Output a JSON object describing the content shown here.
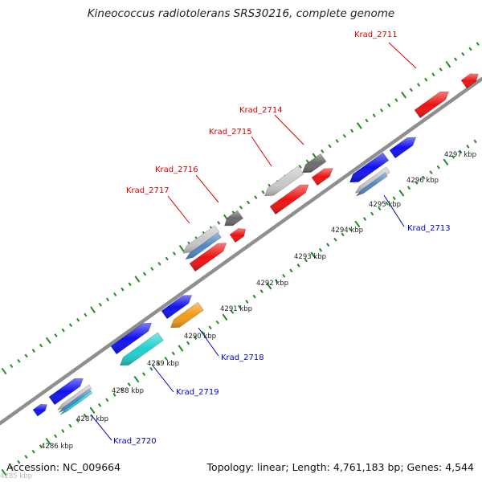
{
  "title": "Kineococcus radiotolerans SRS30216, complete genome",
  "footer": {
    "accession": "Accession: NC_009664",
    "topology": "Topology: linear",
    "length": "Length: 4,761,183 bp",
    "genes": "Genes: 4,544"
  },
  "colors": {
    "backbone": "#999999",
    "ticks": "#228B22",
    "forward_label": "#dd0000",
    "reverse_label": "#0000cc",
    "blue": "#1010ee",
    "red": "#ee1111",
    "cyan": "#1fcfcf",
    "orange": "#f39a18",
    "steel": "#4f86c4",
    "light_gray": "#c8c8c8",
    "dark_gray": "#6a6a6a"
  },
  "kbp_labels": [
    "4285 kbp",
    "4286 kbp",
    "4287 kbp",
    "4288 kbp",
    "4289 kbp",
    "4290 kbp",
    "4291 kbp",
    "4292 kbp",
    "4293 kbp",
    "4294 kbp",
    "4295 kbp",
    "4296 kbp",
    "4297 kbp"
  ],
  "forward_labels": [
    "Krad_2711",
    "Krad_2714",
    "Krad_2715",
    "Krad_2716",
    "Krad_2717"
  ],
  "reverse_labels": [
    "Krad_2713",
    "Krad_2718",
    "Krad_2719",
    "Krad_2720"
  ]
}
